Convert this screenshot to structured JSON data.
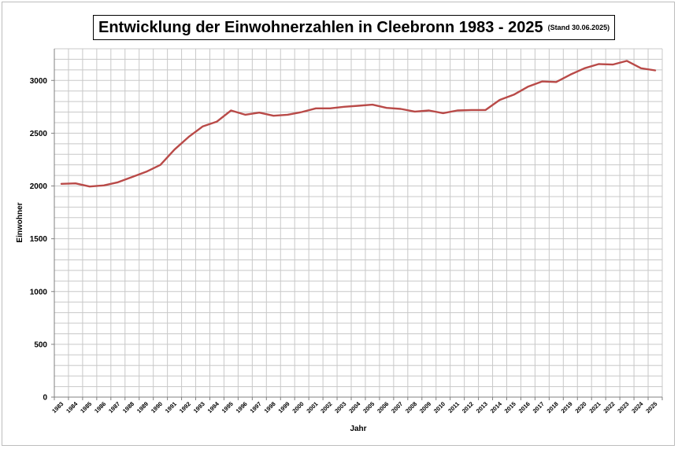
{
  "chart_data": {
    "type": "line",
    "title": "Entwicklung der Einwohnerzahlen in Cleebronn 1983 - 2025",
    "subtitle": "(Stand 30.06.2025)",
    "xlabel": "Jahr",
    "ylabel": "Einwohner",
    "ylim": [
      0,
      3300
    ],
    "yticks": [
      0,
      500,
      1000,
      1500,
      2000,
      2500,
      3000
    ],
    "grid": true,
    "line_color": "#b94a48",
    "categories": [
      "1983",
      "1984",
      "1985",
      "1986",
      "1987",
      "1988",
      "1989",
      "1990",
      "1991",
      "1992",
      "1993",
      "1994",
      "1995",
      "1996",
      "1997",
      "1998",
      "1999",
      "2000",
      "2001",
      "2002",
      "2003",
      "2004",
      "2005",
      "2006",
      "2007",
      "2008",
      "2009",
      "2010",
      "2011",
      "2012",
      "2013",
      "2014",
      "2015",
      "2016",
      "2017",
      "2018",
      "2019",
      "2020",
      "2021",
      "2022",
      "2023",
      "2024",
      "2025"
    ],
    "values": [
      2020,
      2025,
      1995,
      2005,
      2035,
      2085,
      2135,
      2200,
      2345,
      2465,
      2565,
      2610,
      2715,
      2675,
      2695,
      2665,
      2675,
      2700,
      2735,
      2735,
      2750,
      2760,
      2770,
      2740,
      2730,
      2705,
      2715,
      2690,
      2715,
      2720,
      2720,
      2815,
      2865,
      2940,
      2990,
      2985,
      3055,
      3115,
      3155,
      3150,
      3185,
      3115,
      3095
    ]
  }
}
